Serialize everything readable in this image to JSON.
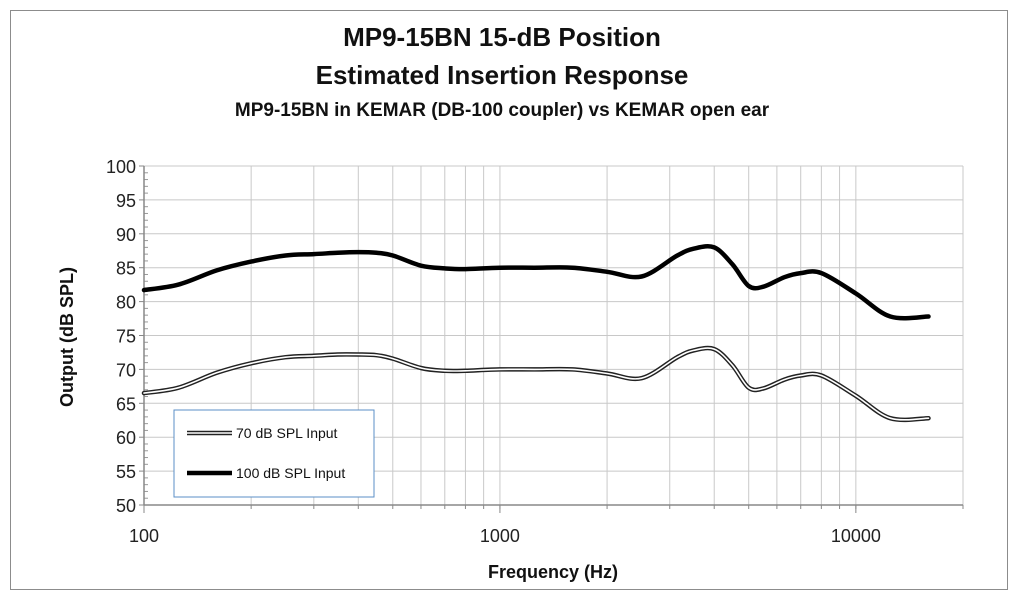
{
  "chart_data": {
    "type": "line",
    "title": "MP9-15BN  15-dB Position",
    "subtitle": "Estimated Insertion Response",
    "subtitle2": "MP9-15BN in KEMAR (DB-100 coupler) vs KEMAR open ear",
    "xlabel": "Frequency (Hz)",
    "ylabel": "Output (dB SPL)",
    "xscale": "log",
    "xlim": [
      100,
      20000
    ],
    "ylim": [
      50,
      100
    ],
    "xticks": [
      100,
      1000,
      10000
    ],
    "xtick_labels": [
      "100",
      "1000",
      "10000"
    ],
    "yticks": [
      50,
      55,
      60,
      65,
      70,
      75,
      80,
      85,
      90,
      95,
      100
    ],
    "grid": true,
    "legend": "bottom-left",
    "series": [
      {
        "name": "70 dB SPL Input",
        "style": "double-line",
        "color": "#222222",
        "x": [
          100,
          125,
          160,
          200,
          250,
          300,
          350,
          400,
          450,
          500,
          600,
          700,
          800,
          1000,
          1250,
          1600,
          2000,
          2500,
          3150,
          3500,
          4000,
          4500,
          5000,
          5500,
          6300,
          7000,
          8000,
          10000,
          12500,
          16000
        ],
        "y": [
          66.5,
          67.3,
          69.5,
          70.9,
          71.8,
          72.0,
          72.2,
          72.2,
          72.1,
          71.6,
          70.2,
          69.8,
          69.8,
          70.0,
          70.0,
          70.0,
          69.4,
          68.7,
          71.8,
          72.8,
          73.0,
          70.6,
          67.3,
          67.2,
          68.5,
          69.1,
          69.1,
          66.1,
          62.8,
          62.8
        ]
      },
      {
        "name": "100 dB SPL Input",
        "style": "solid-thick",
        "color": "#000000",
        "x": [
          100,
          125,
          160,
          200,
          250,
          300,
          350,
          400,
          450,
          500,
          600,
          700,
          800,
          1000,
          1250,
          1600,
          2000,
          2500,
          3150,
          3500,
          4000,
          4500,
          5000,
          5500,
          6300,
          7000,
          8000,
          10000,
          12500,
          16000
        ],
        "y": [
          81.7,
          82.5,
          84.6,
          85.9,
          86.8,
          87.0,
          87.2,
          87.3,
          87.2,
          86.8,
          85.3,
          84.9,
          84.8,
          85.0,
          85.0,
          85.0,
          84.4,
          83.7,
          86.8,
          87.8,
          88.0,
          85.5,
          82.3,
          82.2,
          83.6,
          84.2,
          84.2,
          81.2,
          77.8,
          77.8
        ]
      }
    ]
  }
}
